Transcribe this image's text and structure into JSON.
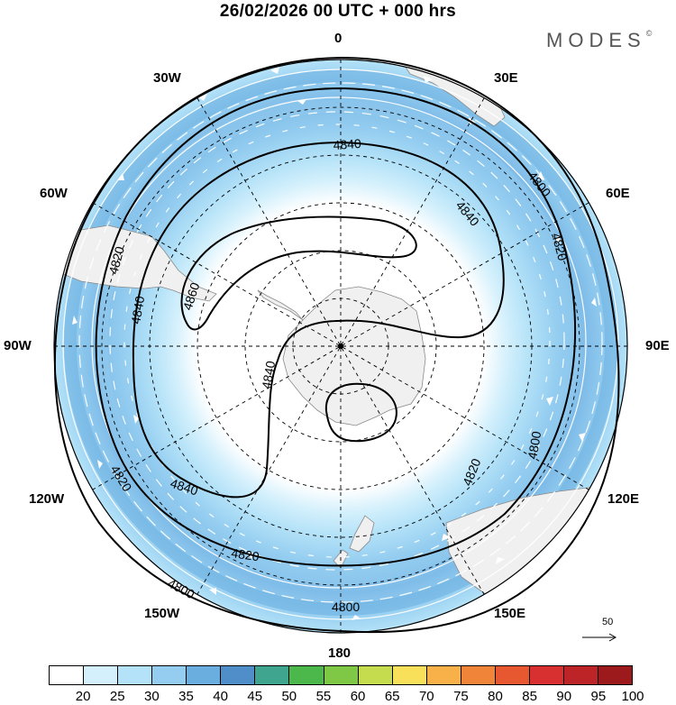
{
  "title": "26/02/2026  00 UTC  + 000 hrs",
  "logo": "MODES",
  "logo_mark": "©",
  "longitude_labels": {
    "n0": "0",
    "n30e": "30E",
    "n60e": "60E",
    "n90e": "90E",
    "n120e": "120E",
    "n150e": "150E",
    "n180": "180",
    "n150w": "150W",
    "n120w": "120W",
    "n90w": "90W",
    "n60w": "60W",
    "n30w": "30W"
  },
  "contour_labels": [
    "4800",
    "4820",
    "4840",
    "4860"
  ],
  "reference_vector": "50",
  "colorbar": {
    "labels": [
      "20",
      "25",
      "30",
      "35",
      "40",
      "45",
      "50",
      "55",
      "60",
      "65",
      "70",
      "75",
      "80",
      "85",
      "90",
      "95",
      "100"
    ],
    "colors": [
      "#ffffff",
      "#d4f0fc",
      "#b4e2f8",
      "#94cdf0",
      "#6aaee0",
      "#4f8ec8",
      "#3fa58f",
      "#4cb84c",
      "#7ec846",
      "#c4dc4e",
      "#f8e05a",
      "#f8b048",
      "#f08438",
      "#e85830",
      "#d83030",
      "#bc2428",
      "#9c1a1c"
    ]
  },
  "colors": {
    "land": "#f0f0f0",
    "coast": "#8a8a8a",
    "contour": "#000000"
  }
}
